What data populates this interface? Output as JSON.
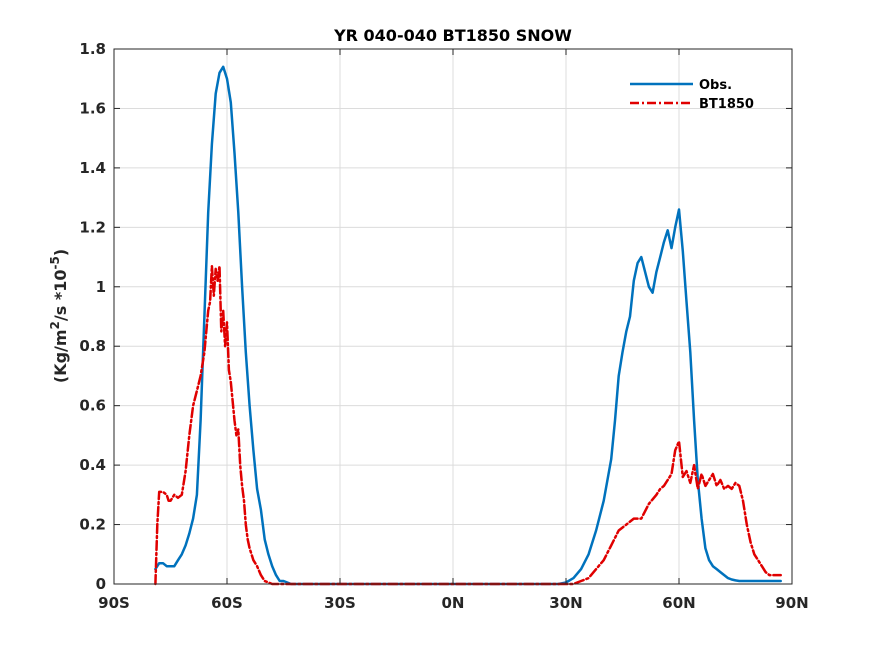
{
  "chart_data": {
    "type": "line",
    "title": "YR 040-040 BT1850 SNOW",
    "ylabel_main": "(Kg/m",
    "ylabel_sup1": "2",
    "ylabel_mid": "/s *10",
    "ylabel_sup2": "-5",
    "ylabel_end": ")",
    "xlim": [
      -90,
      90
    ],
    "ylim": [
      0,
      1.8
    ],
    "xticks": [
      -90,
      -60,
      -30,
      0,
      30,
      60,
      90
    ],
    "xtick_labels": [
      "90S",
      "60S",
      "30S",
      "0N",
      "30N",
      "60N",
      "90N"
    ],
    "yticks": [
      0,
      0.2,
      0.4,
      0.6,
      0.8,
      1,
      1.2,
      1.4,
      1.6,
      1.8
    ],
    "ytick_labels": [
      "0",
      "0.2",
      "0.4",
      "0.6",
      "0.8",
      "1",
      "1.2",
      "1.4",
      "1.6",
      "1.8"
    ],
    "grid": true,
    "legend_position": "top-right",
    "series": [
      {
        "name": "Obs.",
        "color": "#0072BD",
        "style": "solid",
        "x": [
          -79,
          -78,
          -77,
          -76,
          -75,
          -74,
          -73,
          -72,
          -71,
          -70,
          -69,
          -68,
          -67,
          -66,
          -65,
          -64,
          -63,
          -62,
          -61,
          -60,
          -59,
          -58,
          -57,
          -56,
          -55,
          -54,
          -53,
          -52,
          -51,
          -50,
          -49,
          -48,
          -47,
          -46,
          -45,
          -44,
          -43,
          -42,
          -41,
          -40,
          -39,
          -38,
          -35,
          -30,
          0,
          28,
          30,
          32,
          34,
          36,
          38,
          40,
          42,
          43,
          44,
          45,
          46,
          47,
          48,
          49,
          50,
          51,
          52,
          53,
          54,
          55,
          56,
          57,
          58,
          59,
          60,
          61,
          62,
          63,
          64,
          65,
          66,
          67,
          68,
          69,
          70,
          71,
          72,
          73,
          74,
          75,
          76,
          77,
          78,
          79,
          80,
          82,
          84,
          86,
          87
        ],
        "y": [
          0.05,
          0.07,
          0.07,
          0.06,
          0.06,
          0.06,
          0.08,
          0.1,
          0.13,
          0.17,
          0.22,
          0.3,
          0.55,
          0.9,
          1.25,
          1.48,
          1.65,
          1.72,
          1.74,
          1.7,
          1.62,
          1.45,
          1.25,
          1.0,
          0.78,
          0.6,
          0.45,
          0.32,
          0.25,
          0.15,
          0.1,
          0.06,
          0.03,
          0.01,
          0.01,
          0.005,
          0,
          0,
          0,
          0,
          0,
          0,
          0,
          0,
          0,
          0,
          0.005,
          0.02,
          0.05,
          0.1,
          0.18,
          0.28,
          0.42,
          0.55,
          0.7,
          0.78,
          0.85,
          0.9,
          1.02,
          1.08,
          1.1,
          1.05,
          1.0,
          0.98,
          1.05,
          1.1,
          1.15,
          1.19,
          1.13,
          1.2,
          1.26,
          1.12,
          0.95,
          0.78,
          0.55,
          0.35,
          0.22,
          0.12,
          0.08,
          0.06,
          0.05,
          0.04,
          0.03,
          0.02,
          0.015,
          0.012,
          0.01,
          0.01,
          0.01,
          0.01,
          0.01,
          0.01,
          0.01,
          0.01,
          0.01
        ],
        "y_order_note": ""
      },
      {
        "name": "BT1850",
        "color": "#E00000",
        "style": "dashdot",
        "x": [
          -79,
          -78.5,
          -78,
          -77,
          -76,
          -75.5,
          -75,
          -74,
          -73,
          -72,
          -71,
          -70,
          -69,
          -68,
          -67,
          -66,
          -65.5,
          -65,
          -64.5,
          -64,
          -63.5,
          -63,
          -62.5,
          -62,
          -61.5,
          -61,
          -60.5,
          -60,
          -59.5,
          -59,
          -58,
          -57.5,
          -57,
          -56.5,
          -56,
          -55.5,
          -55,
          -54.5,
          -54,
          -53,
          -52,
          -51,
          -50,
          -49,
          -48,
          -47,
          -46,
          -45,
          -44,
          -40,
          0,
          30,
          32,
          34,
          36,
          38,
          40,
          42,
          44,
          46,
          48,
          50,
          52,
          54,
          55,
          56,
          57,
          58,
          59,
          60,
          61,
          62,
          63,
          64,
          65,
          66,
          67,
          68,
          69,
          70,
          71,
          72,
          73,
          74,
          75,
          76,
          77,
          78,
          79,
          80,
          81,
          82,
          83,
          84,
          85,
          86,
          87
        ],
        "y": [
          0,
          0.2,
          0.31,
          0.31,
          0.3,
          0.28,
          0.28,
          0.3,
          0.29,
          0.3,
          0.38,
          0.5,
          0.6,
          0.65,
          0.7,
          0.78,
          0.85,
          0.92,
          0.95,
          1.07,
          0.97,
          1.06,
          1.02,
          1.07,
          0.85,
          0.92,
          0.8,
          0.88,
          0.72,
          0.68,
          0.55,
          0.5,
          0.52,
          0.4,
          0.33,
          0.28,
          0.2,
          0.15,
          0.12,
          0.08,
          0.06,
          0.03,
          0.01,
          0.005,
          0,
          0,
          0,
          0,
          0,
          0,
          0,
          0,
          0,
          0.01,
          0.02,
          0.05,
          0.08,
          0.13,
          0.18,
          0.2,
          0.22,
          0.22,
          0.27,
          0.3,
          0.32,
          0.33,
          0.35,
          0.37,
          0.45,
          0.48,
          0.36,
          0.38,
          0.34,
          0.4,
          0.32,
          0.37,
          0.33,
          0.35,
          0.37,
          0.33,
          0.35,
          0.32,
          0.33,
          0.32,
          0.34,
          0.33,
          0.28,
          0.2,
          0.14,
          0.1,
          0.08,
          0.06,
          0.04,
          0.03,
          0.03,
          0.03,
          0.03
        ]
      }
    ]
  }
}
